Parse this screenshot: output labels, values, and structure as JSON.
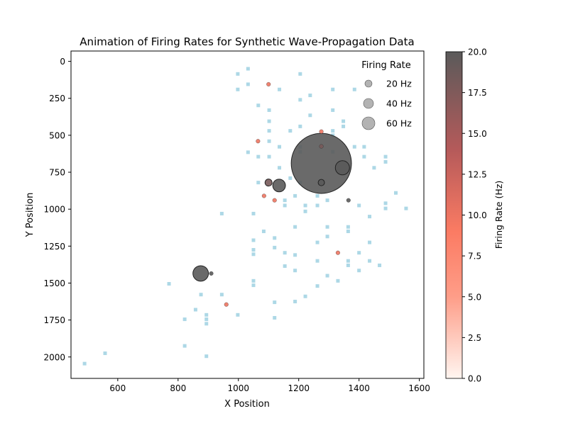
{
  "chart_data": {
    "type": "scatter",
    "title": "Animation of Firing Rates for Synthetic Wave-Propagation Data",
    "xlabel": "X Position",
    "ylabel": "Y Position",
    "xlim": [
      445,
      1615
    ],
    "ylim": [
      2145,
      -70
    ],
    "y_inverted": true,
    "x_ticks": [
      600,
      800,
      1000,
      1200,
      1400,
      1600
    ],
    "y_ticks": [
      0,
      250,
      500,
      750,
      1000,
      1250,
      1500,
      1750,
      2000
    ],
    "grid": false,
    "colorbar": {
      "label": "Firing Rate (Hz)",
      "range": [
        0,
        20
      ],
      "ticks": [
        0.0,
        2.5,
        5.0,
        7.5,
        10.0,
        12.5,
        15.0,
        17.5,
        20.0
      ],
      "colors": [
        "#fff5f0",
        "#fe9d88",
        "#fb7b63",
        "#b55a5a",
        "#5a5a5a"
      ]
    },
    "legend": {
      "title": "Firing Rate",
      "placement": "top-right",
      "entries": [
        "20 Hz",
        "40 Hz",
        "60 Hz"
      ],
      "entry_values": [
        20,
        40,
        60
      ],
      "marker_color": "#808080"
    },
    "inactive_color": "#add8e6",
    "inactive_points": [
      [
        490,
        2045
      ],
      [
        558,
        1975
      ],
      [
        770,
        1505
      ],
      [
        822,
        1745
      ],
      [
        822,
        1925
      ],
      [
        858,
        1680
      ],
      [
        876,
        1578
      ],
      [
        894,
        1715
      ],
      [
        894,
        1745
      ],
      [
        894,
        1775
      ],
      [
        894,
        1995
      ],
      [
        945,
        1578
      ],
      [
        945,
        1030
      ],
      [
        998,
        1715
      ],
      [
        998,
        85
      ],
      [
        998,
        190
      ],
      [
        1032,
        50
      ],
      [
        1032,
        155
      ],
      [
        1032,
        615
      ],
      [
        1050,
        1030
      ],
      [
        1050,
        1210
      ],
      [
        1050,
        1275
      ],
      [
        1050,
        1305
      ],
      [
        1050,
        1485
      ],
      [
        1050,
        1515
      ],
      [
        1066,
        298
      ],
      [
        1066,
        645
      ],
      [
        1066,
        820
      ],
      [
        1084,
        1150
      ],
      [
        1102,
        330
      ],
      [
        1102,
        405
      ],
      [
        1102,
        470
      ],
      [
        1102,
        540
      ],
      [
        1102,
        645
      ],
      [
        1120,
        1195
      ],
      [
        1120,
        1260
      ],
      [
        1120,
        1630
      ],
      [
        1120,
        1735
      ],
      [
        1136,
        190
      ],
      [
        1136,
        578
      ],
      [
        1136,
        720
      ],
      [
        1154,
        940
      ],
      [
        1154,
        975
      ],
      [
        1154,
        1295
      ],
      [
        1154,
        1385
      ],
      [
        1172,
        470
      ],
      [
        1172,
        790
      ],
      [
        1188,
        910
      ],
      [
        1188,
        1120
      ],
      [
        1188,
        1310
      ],
      [
        1188,
        1415
      ],
      [
        1188,
        1625
      ],
      [
        1205,
        85
      ],
      [
        1205,
        260
      ],
      [
        1205,
        440
      ],
      [
        1205,
        578
      ],
      [
        1205,
        612
      ],
      [
        1205,
        820
      ],
      [
        1222,
        975
      ],
      [
        1222,
        1015
      ],
      [
        1222,
        1590
      ],
      [
        1238,
        230
      ],
      [
        1238,
        365
      ],
      [
        1262,
        910
      ],
      [
        1262,
        975
      ],
      [
        1262,
        1225
      ],
      [
        1262,
        1350
      ],
      [
        1262,
        1520
      ],
      [
        1295,
        940
      ],
      [
        1295,
        1120
      ],
      [
        1295,
        1185
      ],
      [
        1295,
        1450
      ],
      [
        1313,
        190
      ],
      [
        1313,
        330
      ],
      [
        1313,
        470
      ],
      [
        1313,
        500
      ],
      [
        1313,
        612
      ],
      [
        1330,
        1485
      ],
      [
        1348,
        405
      ],
      [
        1348,
        440
      ],
      [
        1364,
        1120
      ],
      [
        1364,
        1150
      ],
      [
        1364,
        1350
      ],
      [
        1364,
        1380
      ],
      [
        1385,
        190
      ],
      [
        1385,
        578
      ],
      [
        1400,
        975
      ],
      [
        1400,
        1295
      ],
      [
        1400,
        1415
      ],
      [
        1417,
        578
      ],
      [
        1417,
        645
      ],
      [
        1435,
        1050
      ],
      [
        1435,
        1225
      ],
      [
        1435,
        1350
      ],
      [
        1450,
        720
      ],
      [
        1468,
        1380
      ],
      [
        1488,
        645
      ],
      [
        1488,
        680
      ],
      [
        1488,
        960
      ],
      [
        1488,
        995
      ],
      [
        1522,
        890
      ],
      [
        1556,
        995
      ]
    ],
    "active_points": [
      {
        "x": 1100,
        "y": 155,
        "rate": 10
      },
      {
        "x": 1275,
        "y": 475,
        "rate": 10
      },
      {
        "x": 1065,
        "y": 540,
        "rate": 10
      },
      {
        "x": 1275,
        "y": 575,
        "rate": 18
      },
      {
        "x": 1275,
        "y": 690,
        "rate": 20,
        "size": 1800
      },
      {
        "x": 1345,
        "y": 720,
        "rate": 20,
        "size": 100
      },
      {
        "x": 1100,
        "y": 820,
        "rate": 18,
        "size": 25
      },
      {
        "x": 1135,
        "y": 840,
        "rate": 20,
        "size": 80
      },
      {
        "x": 1275,
        "y": 820,
        "rate": 20,
        "size": 20
      },
      {
        "x": 1085,
        "y": 910,
        "rate": 10
      },
      {
        "x": 1120,
        "y": 940,
        "rate": 10
      },
      {
        "x": 1365,
        "y": 940,
        "rate": 20
      },
      {
        "x": 1330,
        "y": 1295,
        "rate": 10
      },
      {
        "x": 875,
        "y": 1435,
        "rate": 20,
        "size": 120
      },
      {
        "x": 910,
        "y": 1435,
        "rate": 20
      },
      {
        "x": 960,
        "y": 1645,
        "rate": 10
      }
    ]
  }
}
